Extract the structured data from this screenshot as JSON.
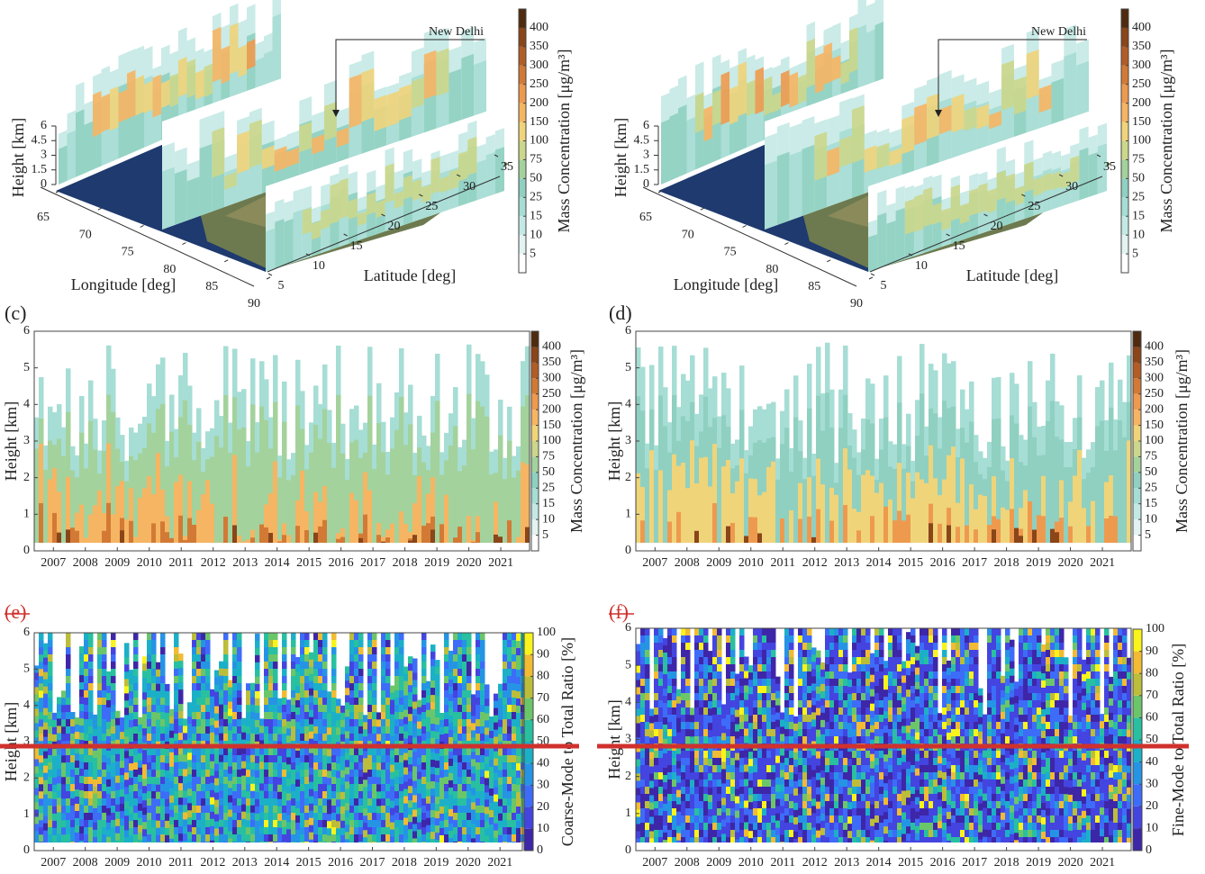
{
  "chart_data": [
    {
      "type": "3d",
      "annotation": "New Delhi",
      "xlabel": "Longitude [deg]",
      "ylabel": "Latitude [deg]",
      "zlabel": "Height [km]",
      "xlim": [
        65,
        90
      ],
      "xticks": [
        65,
        70,
        75,
        80,
        85,
        90
      ],
      "ylim": [
        5,
        35
      ],
      "yticks": [
        5,
        10,
        15,
        20,
        25,
        30,
        35
      ],
      "zlim": [
        0,
        6
      ],
      "zticks": [
        0,
        1.5,
        3,
        4.5,
        6
      ],
      "colorbar": {
        "label": "Mass Concentration [μg/m³]",
        "ticks": [
          5,
          10,
          15,
          25,
          50,
          75,
          100,
          150,
          200,
          250,
          300,
          350,
          400
        ],
        "colors": [
          "#ffffff",
          "#e3f3f1",
          "#c4e9e4",
          "#a6ddd4",
          "#8fd0c1",
          "#a3d29c",
          "#cbd78b",
          "#efd47a",
          "#f6b563",
          "#ee9a4e",
          "#d27a35",
          "#b25d26",
          "#8a4519",
          "#4f2a0e"
        ]
      }
    },
    {
      "type": "3d",
      "annotation": "New Delhi",
      "xlabel": "Longitude [deg]",
      "ylabel": "Latitude [deg]",
      "zlabel": "Height [km]",
      "xlim": [
        65,
        90
      ],
      "xticks": [
        65,
        70,
        75,
        80,
        85,
        90
      ],
      "ylim": [
        5,
        35
      ],
      "yticks": [
        5,
        10,
        15,
        20,
        25,
        30,
        35
      ],
      "zlim": [
        0,
        6
      ],
      "zticks": [
        0,
        1.5,
        3,
        4.5,
        6
      ],
      "colorbar": {
        "label": "Mass Concentration [μg/m³]",
        "ticks": [
          5,
          10,
          15,
          25,
          50,
          75,
          100,
          150,
          200,
          250,
          300,
          350,
          400
        ],
        "colors": [
          "#ffffff",
          "#e3f3f1",
          "#c4e9e4",
          "#a6ddd4",
          "#8fd0c1",
          "#a3d29c",
          "#cbd78b",
          "#efd47a",
          "#f6b563",
          "#ee9a4e",
          "#d27a35",
          "#b25d26",
          "#8a4519",
          "#4f2a0e"
        ]
      }
    },
    {
      "type": "contour",
      "panel_label": "(c)",
      "ylabel": "Height [km]",
      "ylim": [
        0,
        6
      ],
      "yticks": [
        0,
        1,
        2,
        3,
        4,
        5,
        6
      ],
      "xlim": [
        2006.4,
        2021.9
      ],
      "xticks": [
        2007,
        2008,
        2009,
        2010,
        2011,
        2012,
        2013,
        2014,
        2015,
        2016,
        2017,
        2018,
        2019,
        2020,
        2021
      ],
      "colorbar": {
        "label": "Mass Concentration [μg/m³]",
        "ticks": [
          5,
          10,
          15,
          25,
          50,
          75,
          100,
          150,
          200,
          250,
          300,
          350,
          400
        ],
        "colors": [
          "#ffffff",
          "#e3f3f1",
          "#c4e9e4",
          "#a6ddd4",
          "#8fd0c1",
          "#a3d29c",
          "#cbd78b",
          "#efd47a",
          "#f6b563",
          "#ee9a4e",
          "#d27a35",
          "#b25d26",
          "#8a4519",
          "#4f2a0e"
        ]
      }
    },
    {
      "type": "contour",
      "panel_label": "(d)",
      "ylabel": "Height [km]",
      "ylim": [
        0,
        6
      ],
      "yticks": [
        0,
        1,
        2,
        3,
        4,
        5,
        6
      ],
      "xlim": [
        2006.4,
        2021.9
      ],
      "xticks": [
        2007,
        2008,
        2009,
        2010,
        2011,
        2012,
        2013,
        2014,
        2015,
        2016,
        2017,
        2018,
        2019,
        2020,
        2021
      ],
      "colorbar": {
        "label": "Mass Concentration [μg/m³]",
        "ticks": [
          5,
          10,
          15,
          25,
          50,
          75,
          100,
          150,
          200,
          250,
          300,
          350,
          400
        ],
        "colors": [
          "#ffffff",
          "#e3f3f1",
          "#c4e9e4",
          "#a6ddd4",
          "#8fd0c1",
          "#a3d29c",
          "#cbd78b",
          "#efd47a",
          "#f6b563",
          "#ee9a4e",
          "#d27a35",
          "#b25d26",
          "#8a4519",
          "#4f2a0e"
        ]
      }
    },
    {
      "type": "ratio-contour",
      "panel_label": "(e)",
      "ylabel": "Height [km]",
      "ylim": [
        0,
        6
      ],
      "yticks": [
        0,
        1,
        2,
        3,
        4,
        5,
        6
      ],
      "xlim": [
        2006.4,
        2021.7
      ],
      "xticks": [
        2007,
        2008,
        2009,
        2010,
        2011,
        2012,
        2013,
        2014,
        2015,
        2016,
        2017,
        2018,
        2019,
        2020,
        2021
      ],
      "colorbar": {
        "label": "Coarse-Mode to Total Ratio [%]",
        "lim": [
          0,
          100
        ],
        "ticks": [
          0,
          10,
          20,
          30,
          40,
          50,
          60,
          70,
          80,
          90,
          100
        ],
        "colors": [
          "#3e26a8",
          "#4444e0",
          "#3d6cf9",
          "#2594e5",
          "#1cb0c8",
          "#28c0a0",
          "#6bc66a",
          "#bcbd3a",
          "#f2bb33",
          "#f9f41b"
        ]
      }
    },
    {
      "type": "ratio-contour",
      "panel_label": "(f)",
      "ylabel": "Height [km]",
      "ylim": [
        0,
        6
      ],
      "yticks": [
        0,
        1,
        2,
        3,
        4,
        5,
        6
      ],
      "xlim": [
        2006.4,
        2021.9
      ],
      "xticks": [
        2007,
        2008,
        2009,
        2010,
        2011,
        2012,
        2013,
        2014,
        2015,
        2016,
        2017,
        2018,
        2019,
        2020,
        2021
      ],
      "colorbar": {
        "label": "Fine-Mode to Total Ratio [%]",
        "lim": [
          0,
          100
        ],
        "ticks": [
          0,
          10,
          20,
          30,
          40,
          50,
          60,
          70,
          80,
          90,
          100
        ],
        "colors": [
          "#3e26a8",
          "#4444e0",
          "#3d6cf9",
          "#2594e5",
          "#1cb0c8",
          "#28c0a0",
          "#6bc66a",
          "#bcbd3a",
          "#f2bb33",
          "#f9f41b"
        ]
      }
    }
  ]
}
